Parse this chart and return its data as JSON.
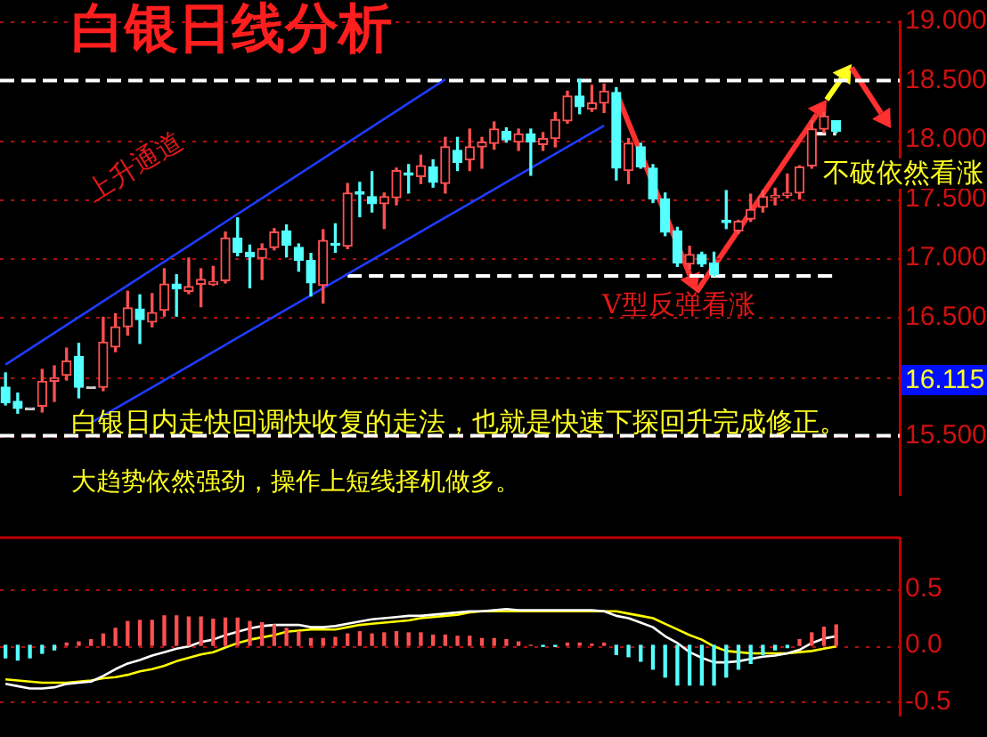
{
  "chart_data": [
    {
      "type": "candlestick",
      "title": "白银日线分析",
      "categories": [
        null,
        null,
        null,
        null,
        null,
        null,
        null,
        null,
        null,
        null,
        null,
        null,
        null,
        null,
        null,
        null,
        null,
        null,
        null,
        null,
        null,
        null,
        null,
        null,
        null,
        null,
        null,
        null,
        null,
        null,
        null,
        null,
        null,
        null,
        null,
        null,
        null,
        null,
        null,
        null,
        null,
        null,
        null,
        null,
        null,
        null,
        null,
        null,
        null,
        null,
        null,
        null,
        null,
        null,
        null,
        null,
        null,
        null,
        null,
        null,
        null,
        null,
        null,
        null,
        null,
        null,
        null,
        null,
        null
      ],
      "ohlc": [
        [
          15.91,
          16.03,
          15.76,
          15.78
        ],
        [
          15.79,
          15.86,
          15.69,
          15.73
        ],
        [
          15.72,
          15.72,
          15.72,
          15.72
        ],
        [
          15.75,
          16.06,
          15.7,
          15.96
        ],
        [
          15.96,
          16.09,
          15.79,
          15.99
        ],
        [
          16.01,
          16.24,
          15.97,
          16.13
        ],
        [
          16.17,
          16.28,
          15.82,
          15.91
        ],
        [
          15.9,
          15.9,
          15.9,
          15.9
        ],
        [
          15.91,
          16.5,
          15.88,
          16.29
        ],
        [
          16.25,
          16.53,
          16.21,
          16.42
        ],
        [
          16.42,
          16.72,
          16.35,
          16.58
        ],
        [
          16.57,
          16.69,
          16.28,
          16.48
        ],
        [
          16.46,
          16.7,
          16.42,
          16.54
        ],
        [
          16.56,
          16.91,
          16.51,
          16.78
        ],
        [
          16.78,
          16.86,
          16.51,
          16.74
        ],
        [
          16.72,
          17.0,
          16.7,
          16.76
        ],
        [
          16.78,
          16.91,
          16.59,
          16.82
        ],
        [
          16.78,
          16.93,
          16.77,
          16.8
        ],
        [
          16.81,
          17.22,
          16.79,
          17.17
        ],
        [
          17.17,
          17.34,
          17.02,
          17.05
        ],
        [
          17.05,
          17.11,
          16.75,
          17.01
        ],
        [
          17.0,
          17.12,
          16.82,
          17.08
        ],
        [
          17.09,
          17.25,
          17.07,
          17.22
        ],
        [
          17.23,
          17.28,
          17.01,
          17.11
        ],
        [
          17.09,
          17.12,
          16.89,
          16.98
        ],
        [
          16.98,
          17.04,
          16.68,
          16.79
        ],
        [
          16.77,
          17.24,
          16.62,
          17.15
        ],
        [
          17.12,
          17.29,
          17.05,
          17.11
        ],
        [
          17.1,
          17.63,
          17.08,
          17.55
        ],
        [
          17.56,
          17.64,
          17.35,
          17.54
        ],
        [
          17.52,
          17.73,
          17.39,
          17.46
        ],
        [
          17.46,
          17.55,
          17.25,
          17.52
        ],
        [
          17.51,
          17.76,
          17.45,
          17.74
        ],
        [
          17.72,
          17.79,
          17.55,
          17.7
        ],
        [
          17.69,
          17.87,
          17.63,
          17.78
        ],
        [
          17.77,
          17.83,
          17.6,
          17.64
        ],
        [
          17.63,
          18.02,
          17.55,
          17.94
        ],
        [
          17.91,
          18.02,
          17.74,
          17.81
        ],
        [
          17.83,
          18.09,
          17.74,
          17.94
        ],
        [
          17.94,
          18.02,
          17.76,
          17.98
        ],
        [
          17.97,
          18.15,
          17.92,
          18.09
        ],
        [
          18.07,
          18.1,
          17.98,
          18.0
        ],
        [
          17.98,
          18.09,
          17.91,
          18.05
        ],
        [
          18.05,
          18.09,
          17.7,
          17.98
        ],
        [
          17.96,
          18.06,
          17.91,
          18.01
        ],
        [
          18.01,
          18.23,
          17.94,
          18.17
        ],
        [
          18.16,
          18.41,
          18.14,
          18.37
        ],
        [
          18.37,
          18.51,
          18.22,
          18.28
        ],
        [
          18.26,
          18.46,
          18.24,
          18.31
        ],
        [
          18.31,
          18.47,
          18.23,
          18.41
        ],
        [
          18.4,
          18.44,
          17.66,
          17.76
        ],
        [
          17.74,
          18.01,
          17.63,
          17.97
        ],
        [
          17.94,
          17.97,
          17.76,
          17.77
        ],
        [
          17.76,
          17.79,
          17.47,
          17.5
        ],
        [
          17.5,
          17.55,
          17.19,
          17.22
        ],
        [
          17.23,
          17.26,
          16.93,
          16.96
        ],
        [
          16.95,
          17.1,
          16.91,
          17.03
        ],
        [
          17.03,
          17.05,
          16.93,
          16.95
        ],
        [
          16.96,
          17.05,
          16.85,
          16.86
        ],
        [
          17.32,
          17.57,
          17.25,
          17.3
        ],
        [
          17.23,
          17.32,
          17.21,
          17.31
        ],
        [
          17.33,
          17.54,
          17.31,
          17.41
        ],
        [
          17.43,
          17.57,
          17.39,
          17.52
        ],
        [
          17.51,
          17.59,
          17.45,
          17.53
        ],
        [
          17.53,
          17.71,
          17.51,
          17.55
        ],
        [
          17.55,
          17.78,
          17.5,
          17.77
        ],
        [
          17.78,
          18.16,
          17.76,
          18.09
        ],
        [
          18.09,
          18.23,
          18.06,
          18.2
        ],
        [
          18.16,
          18.16,
          18.06,
          18.07
        ]
      ],
      "series": [
        {
          "type": "line",
          "color": "#1e3cff",
          "values": [
            16.1,
            null,
            null,
            null,
            null,
            null,
            null,
            null,
            null,
            null,
            null,
            null,
            null,
            null,
            null,
            null,
            null,
            null,
            null,
            null,
            null,
            null,
            null,
            null,
            null,
            null,
            null,
            null,
            null,
            null,
            null,
            null,
            null,
            null,
            null,
            null,
            18.51,
            null,
            null,
            null,
            null,
            null,
            null,
            null,
            null,
            null,
            null,
            null,
            null,
            null,
            null,
            null,
            null,
            null,
            null,
            null,
            null,
            null,
            null,
            null,
            null,
            null,
            null,
            null,
            null,
            null,
            null,
            null,
            null
          ]
        },
        {
          "type": "line",
          "color": "#1e3cff",
          "values": [
            null,
            null,
            null,
            null,
            null,
            null,
            null,
            15.61,
            null,
            null,
            null,
            null,
            null,
            null,
            null,
            null,
            null,
            null,
            null,
            null,
            null,
            null,
            null,
            null,
            null,
            null,
            null,
            null,
            null,
            null,
            null,
            null,
            null,
            null,
            null,
            null,
            null,
            null,
            null,
            null,
            null,
            null,
            null,
            null,
            null,
            null,
            null,
            null,
            null,
            18.12,
            null,
            null,
            null,
            null,
            null,
            null,
            null,
            null,
            null,
            null,
            null,
            null,
            null,
            null,
            null,
            null,
            null,
            null,
            null
          ]
        },
        {
          "type": "line",
          "color": "#ffffff",
          "line_style": "dashed",
          "values": [
            null,
            null,
            null,
            null,
            null,
            null,
            null,
            null,
            null,
            null,
            null,
            null,
            null,
            null,
            null,
            null,
            null,
            null,
            null,
            null,
            null,
            null,
            null,
            null,
            null,
            null,
            null,
            null,
            16.85,
            null,
            null,
            null,
            null,
            null,
            null,
            null,
            null,
            null,
            null,
            null,
            null,
            null,
            null,
            null,
            null,
            null,
            null,
            null,
            null,
            null,
            null,
            null,
            null,
            null,
            null,
            null,
            null,
            null,
            null,
            null,
            null,
            null,
            null,
            null,
            null,
            null,
            null,
            null,
            16.85
          ]
        },
        {
          "type": "line",
          "color": "#ffffff",
          "line_style": "dashed",
          "values": [
            null,
            null,
            null,
            null,
            null,
            null,
            null,
            null,
            null,
            null,
            null,
            null,
            null,
            null,
            null,
            null,
            null,
            null,
            null,
            null,
            null,
            null,
            null,
            null,
            null,
            null,
            null,
            null,
            null,
            null,
            null,
            null,
            null,
            null,
            null,
            null,
            null,
            null,
            null,
            null,
            null,
            null,
            null,
            null,
            null,
            null,
            null,
            null,
            null,
            null,
            null,
            null,
            null,
            null,
            null,
            null,
            null,
            null,
            null,
            null,
            null,
            null,
            null,
            null,
            null,
            null,
            18.05,
            null,
            18.05
          ]
        }
      ],
      "ref_lines": [
        {
          "axis": "y",
          "value": 18.5,
          "color": "#ffffff",
          "line_style": "dashed"
        },
        {
          "axis": "y",
          "value": 15.5,
          "color": "#ffffff",
          "line_style": "dashed"
        }
      ],
      "annotations": [
        "上升通道",
        "V型反弹看涨",
        "不破依然看涨",
        "白银日内走快回调快收复的走法，也就是快速下探回升完成修正。",
        "大趋势依然强劲，操作上短线择机做多。",
        "16.115"
      ],
      "ylim": [
        15.0,
        19.0
      ],
      "yticks": [
        {
          "value": 15.5,
          "label": "15.500"
        },
        {
          "value": 16.0,
          "label": null
        },
        {
          "value": 16.5,
          "label": "16.500"
        },
        {
          "value": 17.0,
          "label": "17.000"
        },
        {
          "value": 17.5,
          "label": "17.500"
        },
        {
          "value": 18.0,
          "label": "18.000"
        },
        {
          "value": 18.5,
          "label": "18.500"
        },
        {
          "value": 19.0,
          "label": "19.000"
        }
      ],
      "grid": "y",
      "tick_labels": "y"
    },
    {
      "type": "bar",
      "categories": [
        null,
        null,
        null,
        null,
        null,
        null,
        null,
        null,
        null,
        null,
        null,
        null,
        null,
        null,
        null,
        null,
        null,
        null,
        null,
        null,
        null,
        null,
        null,
        null,
        null,
        null,
        null,
        null,
        null,
        null,
        null,
        null,
        null,
        null,
        null,
        null,
        null,
        null,
        null,
        null,
        null,
        null,
        null,
        null,
        null,
        null,
        null,
        null,
        null,
        null,
        null,
        null,
        null,
        null,
        null,
        null,
        null,
        null,
        null,
        null,
        null,
        null,
        null,
        null,
        null,
        null,
        null,
        null,
        null
      ],
      "series": [
        {
          "values": [
            -0.11,
            -0.13,
            -0.11,
            -0.07,
            -0.04,
            0.02,
            0.03,
            0.05,
            0.1,
            0.15,
            0.21,
            0.22,
            0.22,
            0.26,
            0.26,
            0.25,
            0.25,
            0.23,
            0.24,
            0.24,
            0.21,
            0.2,
            0.18,
            0.15,
            0.12,
            0.06,
            0.06,
            0.07,
            0.1,
            0.12,
            0.1,
            0.11,
            0.12,
            0.11,
            0.11,
            0.09,
            0.09,
            0.08,
            0.08,
            0.06,
            0.06,
            0.05,
            0.03,
            0,
            -0.01,
            -0.01,
            0.02,
            0.02,
            0.01,
            0.02,
            -0.08,
            -0.1,
            -0.14,
            -0.21,
            -0.28,
            -0.35,
            -0.35,
            -0.35,
            -0.35,
            -0.28,
            -0.21,
            -0.16,
            -0.08,
            -0.04,
            -0.02,
            0.05,
            0.11,
            0.16,
            0.18
          ],
          "colors": [
            "#54ffff",
            "#54ffff",
            "#54ffff",
            "#54ffff",
            "#54ffff",
            "#ff5050",
            "#ff5050",
            "#ff5050",
            "#ff5050",
            "#ff5050",
            "#ff5050",
            "#ff5050",
            "#ff5050",
            "#ff5050",
            "#ff5050",
            "#ff5050",
            "#ff5050",
            "#ff5050",
            "#ff5050",
            "#ff5050",
            "#ff5050",
            "#ff5050",
            "#ff5050",
            "#ff5050",
            "#ff5050",
            "#ff5050",
            "#ff5050",
            "#ff5050",
            "#ff5050",
            "#ff5050",
            "#ff5050",
            "#ff5050",
            "#ff5050",
            "#ff5050",
            "#ff5050",
            "#ff5050",
            "#ff5050",
            "#ff5050",
            "#ff5050",
            "#ff5050",
            "#ff5050",
            "#ff5050",
            "#ff5050",
            "#ff5050",
            "#54ffff",
            "#54ffff",
            "#ff5050",
            "#ff5050",
            "#ff5050",
            "#ff5050",
            "#54ffff",
            "#54ffff",
            "#54ffff",
            "#54ffff",
            "#54ffff",
            "#54ffff",
            "#54ffff",
            "#54ffff",
            "#54ffff",
            "#54ffff",
            "#54ffff",
            "#54ffff",
            "#54ffff",
            "#54ffff",
            "#54ffff",
            "#ff5050",
            "#ff5050",
            "#ff5050",
            "#ff5050"
          ]
        },
        {
          "type": "line",
          "color": "#ffffff",
          "values": [
            -0.34,
            -0.36,
            -0.38,
            -0.38,
            -0.37,
            -0.34,
            -0.33,
            -0.32,
            -0.27,
            -0.21,
            -0.16,
            -0.13,
            -0.09,
            -0.06,
            -0.03,
            -0.01,
            0.03,
            0.05,
            0.09,
            0.12,
            0.15,
            0.17,
            0.18,
            0.18,
            0.18,
            0.16,
            0.16,
            0.17,
            0.19,
            0.21,
            0.23,
            0.24,
            0.25,
            0.26,
            0.26,
            0.27,
            0.28,
            0.29,
            0.3,
            0.3,
            0.31,
            0.32,
            0.31,
            0.31,
            0.31,
            0.31,
            0.31,
            0.31,
            0.31,
            0.3,
            0.26,
            0.24,
            0.2,
            0.16,
            0.08,
            0.02,
            -0.06,
            -0.11,
            -0.15,
            -0.15,
            -0.14,
            -0.12,
            -0.1,
            -0.09,
            -0.07,
            -0.04,
            0.02,
            0.06,
            0.08
          ]
        },
        {
          "type": "line",
          "color": "#ffff00",
          "values": [
            -0.3,
            -0.31,
            -0.32,
            -0.33,
            -0.33,
            -0.33,
            -0.32,
            -0.31,
            -0.29,
            -0.28,
            -0.26,
            -0.23,
            -0.21,
            -0.18,
            -0.14,
            -0.11,
            -0.08,
            -0.06,
            -0.02,
            0.02,
            0.05,
            0.07,
            0.09,
            0.12,
            0.13,
            0.14,
            0.14,
            0.14,
            0.16,
            0.18,
            0.19,
            0.2,
            0.21,
            0.22,
            0.24,
            0.25,
            0.26,
            0.27,
            0.29,
            0.3,
            0.3,
            0.3,
            0.3,
            0.3,
            0.3,
            0.3,
            0.3,
            0.3,
            0.3,
            0.3,
            0.3,
            0.28,
            0.26,
            0.24,
            0.19,
            0.14,
            0.09,
            0.05,
            -0.01,
            -0.05,
            -0.06,
            -0.07,
            -0.07,
            -0.07,
            -0.07,
            -0.06,
            -0.05,
            -0.03,
            -0.01
          ]
        }
      ],
      "ylim": [
        -0.62,
        0.95
      ],
      "yticks": [
        {
          "value": -0.5,
          "label": "-0.5"
        },
        {
          "value": 0,
          "label": "0.0"
        },
        {
          "value": 0.5,
          "label": "0.5"
        }
      ],
      "grid": "y",
      "tick_labels": "y"
    }
  ]
}
